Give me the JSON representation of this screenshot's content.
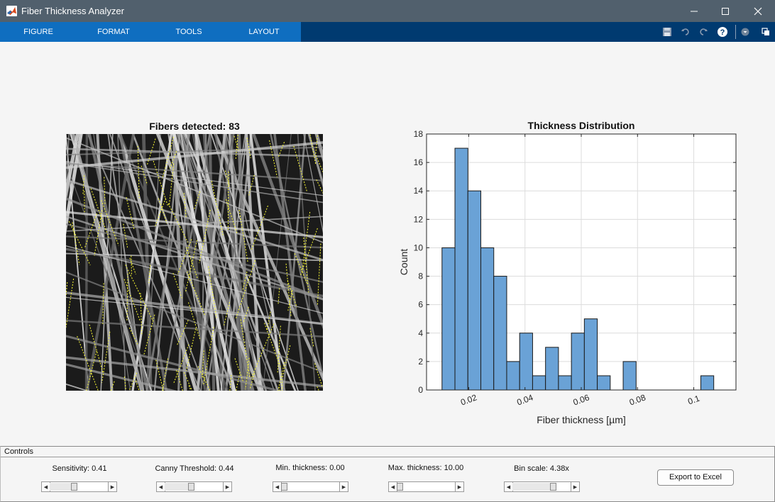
{
  "window": {
    "title": "Fiber Thickness Analyzer"
  },
  "toolstrip": {
    "tabs": [
      "FIGURE",
      "FORMAT",
      "TOOLS",
      "LAYOUT"
    ]
  },
  "image_panel": {
    "title": "Fibers detected: 83"
  },
  "chart_data": {
    "type": "bar",
    "title": "Thickness Distribution",
    "xlabel": "Fiber thickness [µm]",
    "ylabel": "Count",
    "xlim": [
      0.005,
      0.115
    ],
    "ylim": [
      0,
      18
    ],
    "xticks": [
      0.02,
      0.04,
      0.06,
      0.08,
      0.1
    ],
    "xtick_labels": [
      "0.02",
      "0.04",
      "0.06",
      "0.08",
      "0.1"
    ],
    "yticks": [
      0,
      2,
      4,
      6,
      8,
      10,
      12,
      14,
      16,
      18
    ],
    "grid": true,
    "bin_width": 0.0046,
    "bin_start": 0.0105,
    "values": [
      10,
      17,
      14,
      10,
      8,
      2,
      4,
      1,
      3,
      1,
      4,
      5,
      1,
      0,
      2,
      0,
      0,
      0,
      0,
      0,
      1
    ],
    "colors": {
      "bar": "#6aa2d6",
      "edge": "#1a1a1a"
    }
  },
  "controls": {
    "title": "Controls",
    "sliders": [
      {
        "label": "Sensitivity: 0.41",
        "value": 0.41
      },
      {
        "label": "Canny Threshold: 0.44",
        "value": 0.44
      },
      {
        "label": "Min. thickness: 0.00",
        "value": 0.0
      },
      {
        "label": "Max. thickness: 10.00",
        "value": 0.0
      },
      {
        "label": "Bin scale: 4.38x",
        "value": 0.72
      }
    ],
    "export_label": "Export to Excel"
  }
}
